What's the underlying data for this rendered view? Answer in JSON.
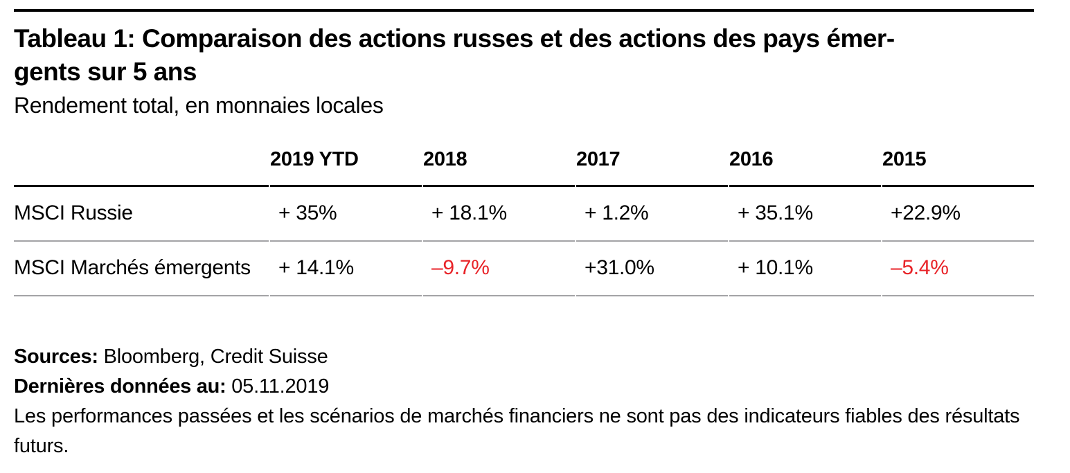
{
  "title": {
    "line1": "Tableau 1: Comparaison des actions russes et des actions des pays émer-",
    "line2": "gents sur 5 ans"
  },
  "subtitle": "Rendement total, en monnaies locales",
  "chart_data": {
    "type": "table",
    "columns": [
      "",
      "2019 YTD",
      "2018",
      "2017",
      "2016",
      "2015"
    ],
    "rows": [
      {
        "label": "MSCI Russie",
        "values": [
          "+ 35%",
          "+ 18.1%",
          "+ 1.2%",
          "+ 35.1%",
          "+22.9%"
        ],
        "numeric": [
          35,
          18.1,
          1.2,
          35.1,
          22.9
        ]
      },
      {
        "label": "MSCI Marchés émergents",
        "values": [
          "+ 14.1%",
          "–9.7%",
          "+31.0%",
          "+ 10.1%",
          "–5.4%"
        ],
        "numeric": [
          14.1,
          -9.7,
          31.0,
          10.1,
          -5.4
        ]
      }
    ]
  },
  "footer": {
    "sources_label": "Sources:",
    "sources_value": "Bloomberg, Credit Suisse",
    "last_data_label": "Dernières données au:",
    "last_data_value": "05.11.2019",
    "disclaimer": "Les performances passées et les scénarios de marchés financiers ne sont pas des indicateurs fiables des résultats futurs."
  },
  "colors": {
    "negative_value": "#e82328",
    "row_rule_gray": "#a3a3a6",
    "heading_rule_black": "#000000"
  }
}
